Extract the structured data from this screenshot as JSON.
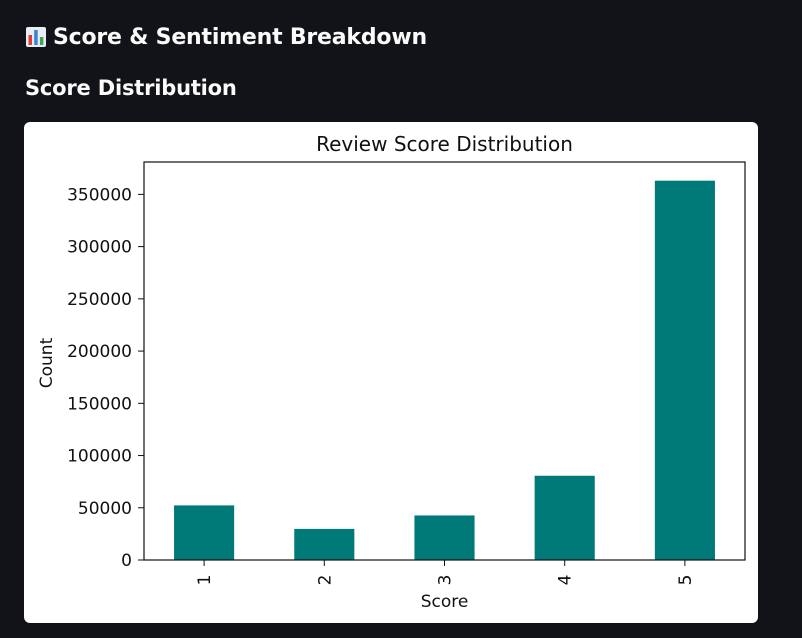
{
  "header": {
    "title": "Score & Sentiment Breakdown",
    "icon": "bar-chart-icon"
  },
  "section": {
    "title": "Score Distribution"
  },
  "colors": {
    "background": "#111318",
    "bar": "#007a78",
    "card": "#ffffff"
  },
  "chart_data": {
    "type": "bar",
    "title": "Review Score Distribution",
    "xlabel": "Score",
    "ylabel": "Count",
    "categories": [
      "1",
      "2",
      "3",
      "4",
      "5"
    ],
    "values": [
      52268,
      29769,
      42640,
      80655,
      363122
    ],
    "ylim": [
      0,
      381000
    ],
    "yticks": [
      0,
      50000,
      100000,
      150000,
      200000,
      250000,
      300000,
      350000
    ],
    "ytick_labels": [
      "0",
      "50000",
      "100000",
      "150000",
      "200000",
      "250000",
      "300000",
      "350000"
    ],
    "grid": false,
    "legend": "none",
    "xtick_rotation": "vertical"
  }
}
